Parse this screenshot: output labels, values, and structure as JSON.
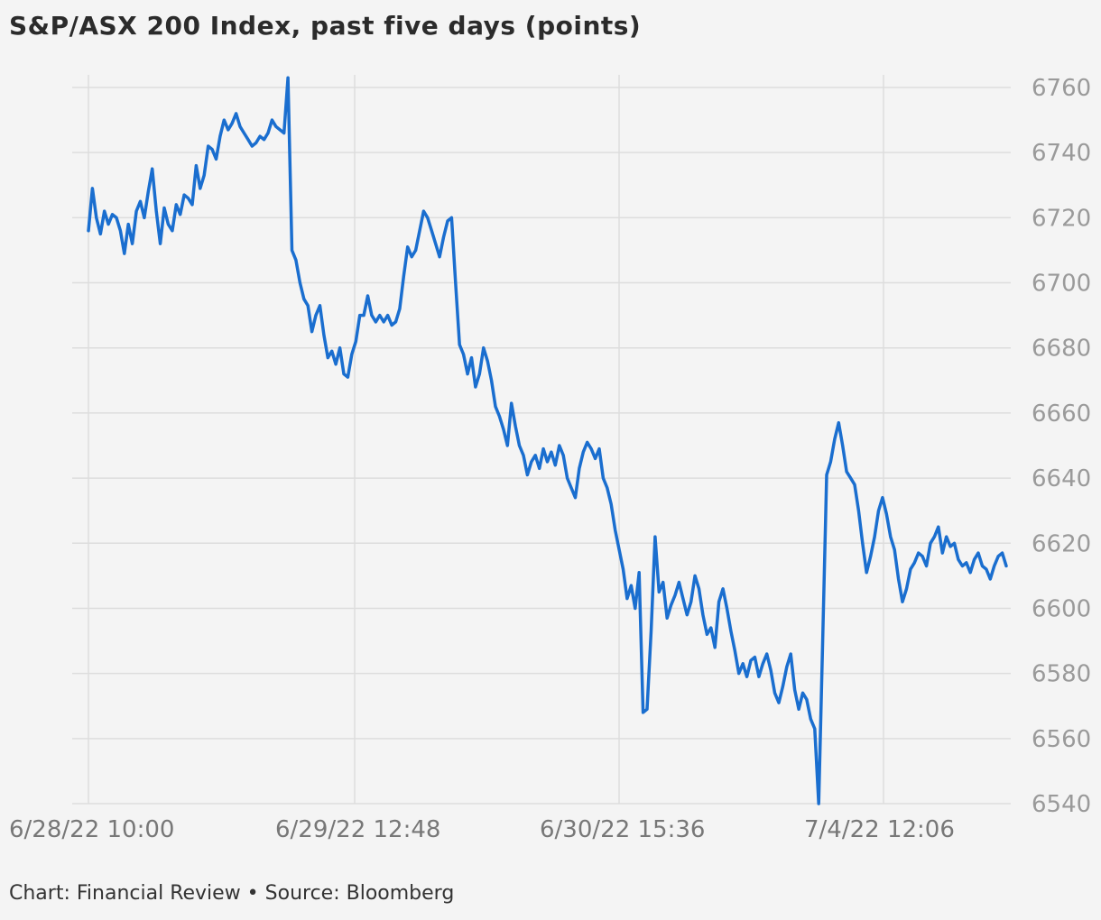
{
  "title": "S&P/ASX 200 Index, past five days (points)",
  "footer": "Chart: Financial Review • Source: Bloomberg",
  "colors": {
    "line": "#1a6ecf",
    "grid": "#dddddd",
    "tick_label": "#9a9a9a",
    "axis_label": "#777777"
  },
  "chart_data": {
    "type": "line",
    "title": "S&P/ASX 200 Index, past five days (points)",
    "xlabel": "",
    "ylabel": "",
    "ylim": [
      6540,
      6760
    ],
    "y_ticks": [
      6540,
      6560,
      6580,
      6600,
      6620,
      6640,
      6660,
      6680,
      6700,
      6720,
      6740,
      6760
    ],
    "x_ticks": [
      "6/28/22 10:00",
      "6/29/22 12:48",
      "6/30/22 15:36",
      "7/4/22 12:06"
    ],
    "grid": true,
    "y_axis_position": "right",
    "series": [
      {
        "values": [
          6716,
          6729,
          6720,
          6715,
          6722,
          6718,
          6721,
          6720,
          6716,
          6709,
          6718,
          6712,
          6722,
          6725,
          6720,
          6728,
          6735,
          6722,
          6712,
          6723,
          6718,
          6716,
          6724,
          6721,
          6727,
          6726,
          6724,
          6736,
          6729,
          6733,
          6742,
          6741,
          6738,
          6745,
          6750,
          6747,
          6749,
          6752,
          6748,
          6746,
          6744,
          6742,
          6743,
          6745,
          6744,
          6746,
          6750,
          6748,
          6747,
          6746,
          6763,
          6710,
          6707,
          6700,
          6695,
          6693,
          6685,
          6690,
          6693,
          6684,
          6677,
          6679,
          6675,
          6680,
          6672,
          6671,
          6678,
          6682,
          6690,
          6690,
          6696,
          6690,
          6688,
          6690,
          6688,
          6690,
          6687,
          6688,
          6692,
          6702,
          6711,
          6708,
          6710,
          6716,
          6722,
          6720,
          6716,
          6712,
          6708,
          6714,
          6719,
          6720,
          6700,
          6681,
          6678,
          6672,
          6677,
          6668,
          6672,
          6680,
          6676,
          6670,
          6662,
          6659,
          6655,
          6650,
          6663,
          6656,
          6650,
          6647,
          6641,
          6645,
          6647,
          6643,
          6649,
          6645,
          6648,
          6644,
          6650,
          6647,
          6640,
          6637,
          6634,
          6643,
          6648,
          6651,
          6649,
          6646,
          6649,
          6640,
          6637,
          6632,
          6624,
          6618,
          6612,
          6603,
          6607,
          6600,
          6611,
          6568,
          6569,
          6593,
          6622,
          6605,
          6608,
          6597,
          6601,
          6604,
          6608,
          6603,
          6598,
          6602,
          6610,
          6606,
          6598,
          6592,
          6594,
          6588,
          6602,
          6606,
          6600,
          6593,
          6587,
          6580,
          6583,
          6579,
          6584,
          6585,
          6579,
          6583,
          6586,
          6581,
          6574,
          6571,
          6576,
          6582,
          6586,
          6575,
          6569,
          6574,
          6572,
          6566,
          6563,
          6540,
          6590,
          6641,
          6645,
          6652,
          6657,
          6650,
          6642,
          6640,
          6638,
          6630,
          6620,
          6611,
          6616,
          6622,
          6630,
          6634,
          6629,
          6622,
          6618,
          6609,
          6602,
          6606,
          6612,
          6614,
          6617,
          6616,
          6613,
          6620,
          6622,
          6625,
          6617,
          6622,
          6619,
          6620,
          6615,
          6613,
          6614,
          6611,
          6615,
          6617,
          6613,
          6612,
          6609,
          6613,
          6616,
          6617,
          6613
        ]
      }
    ]
  }
}
